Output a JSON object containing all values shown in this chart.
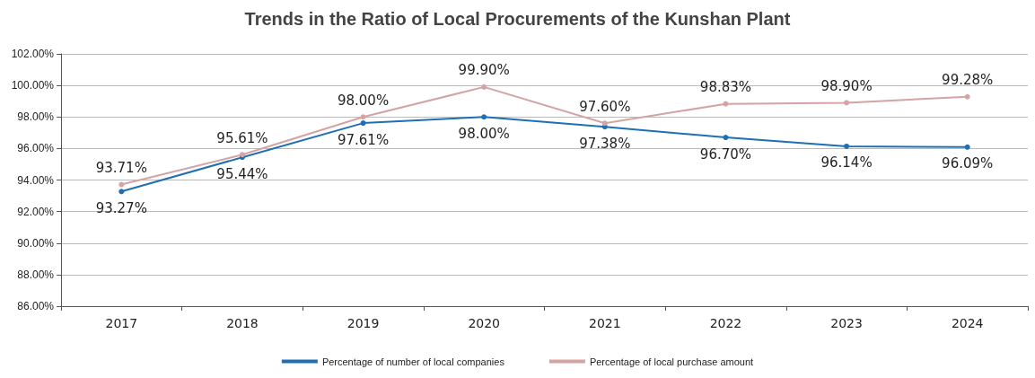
{
  "chart_data": {
    "type": "line",
    "title": "Trends in the Ratio of Local Procurements of the Kunshan Plant",
    "categories": [
      "2017",
      "2018",
      "2019",
      "2020",
      "2021",
      "2022",
      "2023",
      "2024"
    ],
    "series": [
      {
        "name": "Percentage of number of local companies",
        "color": "#1f6fb4",
        "values": [
          93.27,
          95.44,
          97.61,
          98.0,
          97.38,
          96.7,
          96.14,
          96.09
        ],
        "value_labels": [
          "93.27%",
          "95.44%",
          "97.61%",
          "98.00%",
          "97.38%",
          "96.70%",
          "96.14%",
          "96.09%"
        ]
      },
      {
        "name": "Percentage of local purchase amount",
        "color": "#d4a3a3",
        "values": [
          93.71,
          95.61,
          98.0,
          99.9,
          97.6,
          98.83,
          98.9,
          99.28
        ],
        "value_labels": [
          "93.71%",
          "95.61%",
          "98.00%",
          "99.90%",
          "97.60%",
          "98.83%",
          "98.90%",
          "99.28%"
        ]
      }
    ],
    "ylim": [
      86,
      102
    ],
    "yticks": [
      {
        "value": 86,
        "label": "86.00%"
      },
      {
        "value": 88,
        "label": "88.00%"
      },
      {
        "value": 90,
        "label": "90.00%"
      },
      {
        "value": 92,
        "label": "92.00%"
      },
      {
        "value": 94,
        "label": "94.00%"
      },
      {
        "value": 96,
        "label": "96.00%"
      },
      {
        "value": 98,
        "label": "98.00%"
      },
      {
        "value": 100,
        "label": "100.00%"
      },
      {
        "value": 102,
        "label": "102.00%"
      }
    ],
    "grid": "y",
    "legend": "bottom",
    "marker": "circle",
    "line_style": "solid"
  }
}
